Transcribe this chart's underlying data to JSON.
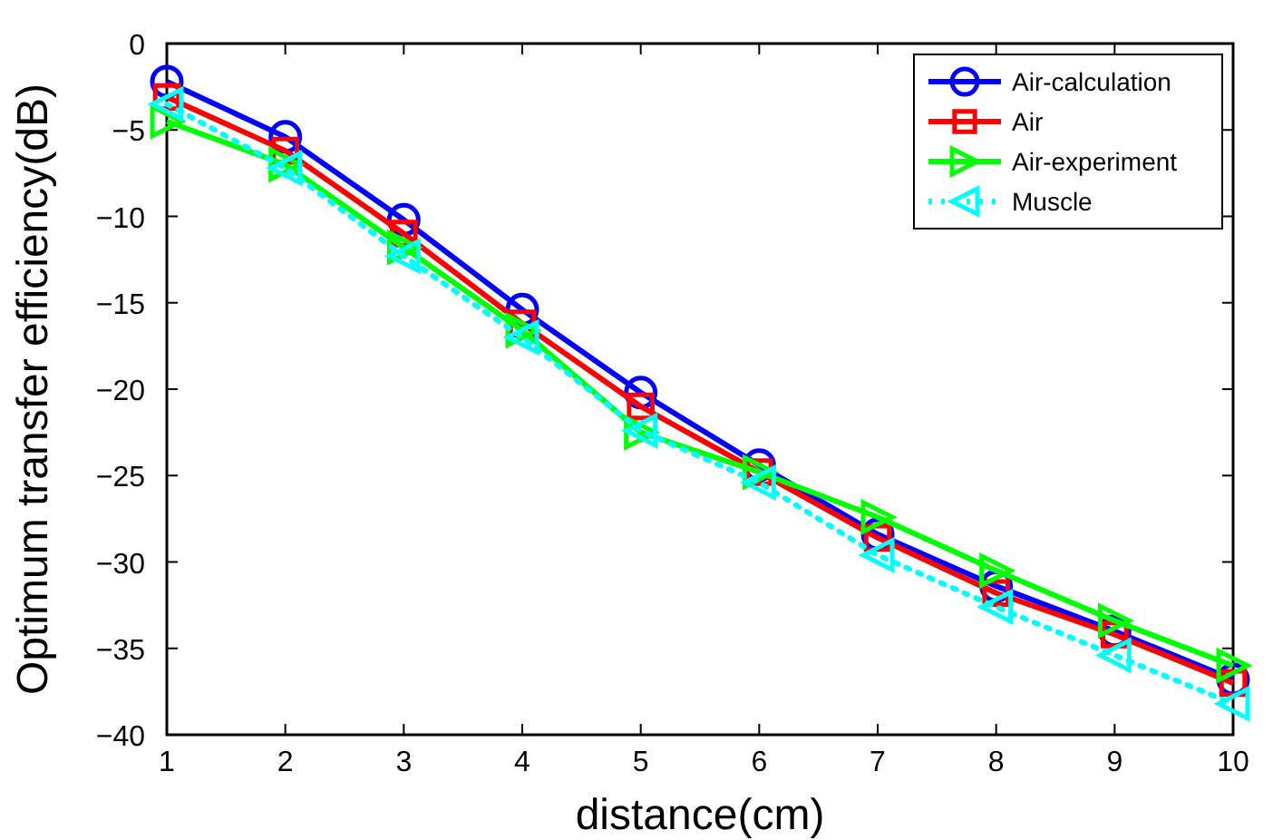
{
  "chart_data": {
    "type": "line",
    "xlabel": "distance(cm)",
    "ylabel": "Optimum transfer efficiency(dB)",
    "x": [
      1,
      2,
      3,
      4,
      5,
      6,
      7,
      8,
      9,
      10
    ],
    "xlim": [
      1,
      10
    ],
    "xticks": [
      1,
      2,
      3,
      4,
      5,
      6,
      7,
      8,
      9,
      10
    ],
    "ylim": [
      -40,
      0
    ],
    "yticks": [
      -40,
      -35,
      -30,
      -25,
      -20,
      -15,
      -10,
      -5,
      0
    ],
    "grid": false,
    "legend": "top right",
    "series": [
      {
        "name": "Air-calculation",
        "color": "#0000ff",
        "marker": "circle",
        "line_style": "solid",
        "values": [
          -2.2,
          -5.4,
          -10.2,
          -15.4,
          -20.2,
          -24.4,
          -28.4,
          -31.4,
          -34,
          -36.8
        ]
      },
      {
        "name": "Air",
        "color": "#ff0000",
        "marker": "square",
        "line_style": "solid",
        "values": [
          -3.1,
          -6.2,
          -11,
          -16.2,
          -21,
          -24.8,
          -28.6,
          -31.8,
          -34.2,
          -37
        ]
      },
      {
        "name": "Air-experiment",
        "color": "#00ff00",
        "marker": "triangle-right",
        "line_style": "solid",
        "values": [
          -4.5,
          -7,
          -11.8,
          -16.6,
          -22.5,
          -24.8,
          -27.4,
          -30.5,
          -33.4,
          -36
        ]
      },
      {
        "name": "Muscle",
        "color": "#00ffff",
        "marker": "triangle-left",
        "line_style": "dotted",
        "values": [
          -3.5,
          -7.2,
          -12.3,
          -17,
          -22.4,
          -25.4,
          -29.6,
          -32.6,
          -35.4,
          -38.2
        ]
      }
    ]
  }
}
